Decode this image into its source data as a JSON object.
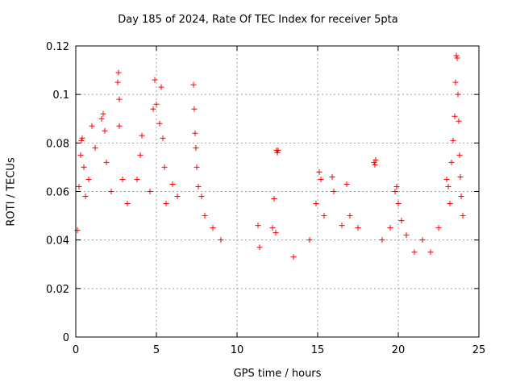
{
  "chart_data": {
    "type": "scatter",
    "title": "Day 185 of 2024, Rate Of TEC Index for receiver 5pta",
    "xlabel": "GPS time / hours",
    "ylabel": "ROTI / TECUs",
    "xlim": [
      0,
      25
    ],
    "ylim": [
      0,
      0.12
    ],
    "x_ticks": [
      "0",
      "5",
      "10",
      "15",
      "20",
      "25"
    ],
    "y_ticks": [
      "0",
      "0.02",
      "0.04",
      "0.06",
      "0.08",
      "0.1",
      "0.12"
    ],
    "grid": true,
    "marker": "+",
    "color": "#ff0000",
    "series": [
      {
        "points": [
          [
            0.1,
            0.044
          ],
          [
            0.2,
            0.062
          ],
          [
            0.3,
            0.075
          ],
          [
            0.35,
            0.081
          ],
          [
            0.4,
            0.082
          ],
          [
            0.5,
            0.07
          ],
          [
            0.6,
            0.058
          ],
          [
            0.8,
            0.065
          ],
          [
            1.0,
            0.087
          ],
          [
            1.2,
            0.078
          ],
          [
            1.6,
            0.09
          ],
          [
            1.7,
            0.092
          ],
          [
            1.8,
            0.085
          ],
          [
            1.9,
            0.072
          ],
          [
            2.2,
            0.06
          ],
          [
            2.6,
            0.105
          ],
          [
            2.65,
            0.109
          ],
          [
            2.7,
            0.098
          ],
          [
            2.7,
            0.087
          ],
          [
            2.9,
            0.065
          ],
          [
            3.2,
            0.055
          ],
          [
            3.8,
            0.065
          ],
          [
            4.0,
            0.075
          ],
          [
            4.1,
            0.083
          ],
          [
            4.6,
            0.06
          ],
          [
            4.8,
            0.094
          ],
          [
            4.9,
            0.106
          ],
          [
            5.0,
            0.096
          ],
          [
            5.2,
            0.088
          ],
          [
            5.3,
            0.103
          ],
          [
            5.4,
            0.082
          ],
          [
            5.5,
            0.07
          ],
          [
            5.6,
            0.055
          ],
          [
            6.0,
            0.063
          ],
          [
            6.3,
            0.058
          ],
          [
            7.3,
            0.104
          ],
          [
            7.35,
            0.094
          ],
          [
            7.4,
            0.084
          ],
          [
            7.45,
            0.078
          ],
          [
            7.5,
            0.07
          ],
          [
            7.6,
            0.062
          ],
          [
            7.8,
            0.058
          ],
          [
            8.0,
            0.05
          ],
          [
            8.5,
            0.045
          ],
          [
            9.0,
            0.04
          ],
          [
            11.3,
            0.046
          ],
          [
            11.4,
            0.037
          ],
          [
            12.2,
            0.045
          ],
          [
            12.3,
            0.057
          ],
          [
            12.4,
            0.043
          ],
          [
            12.45,
            0.077
          ],
          [
            12.5,
            0.076
          ],
          [
            12.55,
            0.077
          ],
          [
            13.5,
            0.033
          ],
          [
            14.5,
            0.04
          ],
          [
            14.9,
            0.055
          ],
          [
            15.1,
            0.068
          ],
          [
            15.2,
            0.065
          ],
          [
            15.4,
            0.05
          ],
          [
            15.9,
            0.066
          ],
          [
            16.0,
            0.06
          ],
          [
            16.5,
            0.046
          ],
          [
            16.8,
            0.063
          ],
          [
            17.0,
            0.05
          ],
          [
            17.5,
            0.045
          ],
          [
            18.5,
            0.072
          ],
          [
            18.55,
            0.071
          ],
          [
            18.6,
            0.073
          ],
          [
            19.0,
            0.04
          ],
          [
            19.5,
            0.045
          ],
          [
            19.8,
            0.06
          ],
          [
            19.9,
            0.062
          ],
          [
            20.0,
            0.055
          ],
          [
            20.2,
            0.048
          ],
          [
            20.5,
            0.042
          ],
          [
            21.0,
            0.035
          ],
          [
            21.5,
            0.04
          ],
          [
            22.0,
            0.035
          ],
          [
            22.5,
            0.045
          ],
          [
            23.0,
            0.065
          ],
          [
            23.1,
            0.062
          ],
          [
            23.2,
            0.055
          ],
          [
            23.3,
            0.072
          ],
          [
            23.4,
            0.081
          ],
          [
            23.5,
            0.091
          ],
          [
            23.55,
            0.105
          ],
          [
            23.6,
            0.116
          ],
          [
            23.65,
            0.115
          ],
          [
            23.7,
            0.1
          ],
          [
            23.75,
            0.089
          ],
          [
            23.8,
            0.075
          ],
          [
            23.85,
            0.066
          ],
          [
            23.9,
            0.058
          ],
          [
            24.0,
            0.05
          ]
        ]
      }
    ]
  }
}
